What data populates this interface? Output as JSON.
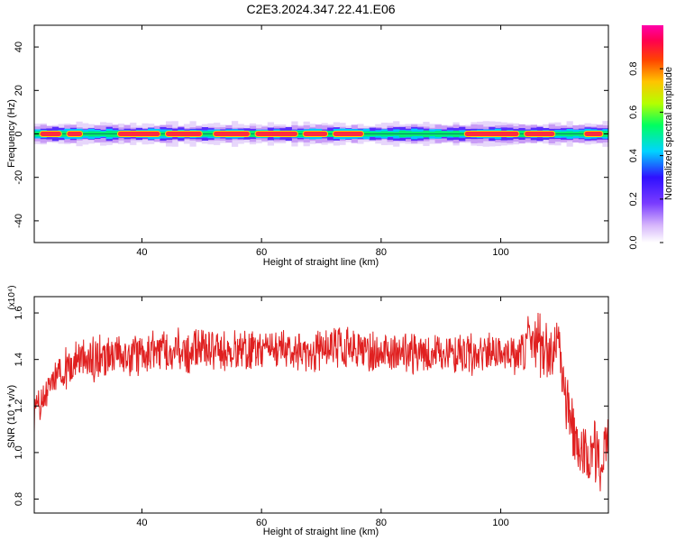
{
  "title": "C2E3.2024.347.22.41.E06",
  "chart_data": [
    {
      "type": "heatmap",
      "xlabel": "Height of straight line (km)",
      "ylabel": "Frequency (Hz)",
      "xlim": [
        22,
        118
      ],
      "ylim": [
        -50,
        50
      ],
      "xticks": [
        40,
        60,
        80,
        100
      ],
      "yticks": [
        -40,
        -20,
        0,
        20,
        40
      ],
      "grid": false,
      "band_center_hz": 0,
      "band_halfwidth_hz": 2,
      "colorbar": {
        "label": "Normalized spectral amplitude",
        "range": [
          0,
          1
        ],
        "ticks": [
          0.0,
          0.2,
          0.4,
          0.6,
          0.8
        ],
        "colors": [
          "#ffffff",
          "#b87ff7",
          "#3d10ff",
          "#00d7ff",
          "#00ff5a",
          "#e0ff00",
          "#ff7a00",
          "#ff003c",
          "#ff00a0"
        ]
      },
      "peak_segments": [
        {
          "x": [
            23,
            26.5
          ],
          "level": 0.8
        },
        {
          "x": [
            27.5,
            30
          ],
          "level": 0.75
        },
        {
          "x": [
            36,
            43
          ],
          "level": 0.95
        },
        {
          "x": [
            44,
            50
          ],
          "level": 0.95
        },
        {
          "x": [
            52,
            58
          ],
          "level": 0.9
        },
        {
          "x": [
            59,
            66
          ],
          "level": 0.92
        },
        {
          "x": [
            67,
            71
          ],
          "level": 0.9
        },
        {
          "x": [
            72,
            77
          ],
          "level": 0.95
        },
        {
          "x": [
            94,
            103
          ],
          "level": 0.95
        },
        {
          "x": [
            104,
            109
          ],
          "level": 0.9
        },
        {
          "x": [
            114,
            117
          ],
          "level": 0.9
        }
      ]
    },
    {
      "type": "line",
      "xlabel": "Height of straight line (km)",
      "ylabel": "SNR (10 * v/v)",
      "y_multiplier": "(x10⁴)",
      "xlim": [
        22,
        118
      ],
      "ylim": [
        0.74,
        1.67
      ],
      "xticks": [
        40,
        60,
        80,
        100
      ],
      "yticks": [
        0.8,
        1.0,
        1.2,
        1.4,
        1.6
      ],
      "grid": false,
      "color": "#e02020",
      "series": [
        {
          "x": [
            22,
            23,
            24,
            25,
            26,
            27,
            28,
            29,
            30,
            31,
            32,
            33,
            34,
            35,
            36,
            38,
            40,
            42,
            44,
            46,
            48,
            50,
            52,
            54,
            56,
            58,
            60,
            62,
            64,
            66,
            68,
            70,
            72,
            74,
            76,
            78,
            80,
            82,
            84,
            86,
            88,
            90,
            92,
            94,
            96,
            98,
            100,
            102,
            104,
            105,
            106,
            107,
            108,
            109,
            110,
            110.5,
            111,
            112,
            113,
            114,
            115,
            116,
            117,
            118
          ],
          "y": [
            1.15,
            1.2,
            1.25,
            1.3,
            1.33,
            1.36,
            1.38,
            1.4,
            1.4,
            1.4,
            1.4,
            1.42,
            1.41,
            1.42,
            1.43,
            1.42,
            1.42,
            1.43,
            1.44,
            1.44,
            1.42,
            1.45,
            1.44,
            1.44,
            1.43,
            1.44,
            1.43,
            1.44,
            1.45,
            1.42,
            1.43,
            1.44,
            1.45,
            1.44,
            1.44,
            1.43,
            1.43,
            1.44,
            1.43,
            1.42,
            1.42,
            1.43,
            1.42,
            1.43,
            1.42,
            1.42,
            1.42,
            1.41,
            1.45,
            1.5,
            1.48,
            1.45,
            1.44,
            1.45,
            1.42,
            1.3,
            1.2,
            1.1,
            1.0,
            0.98,
            1.0,
            1.02,
            0.97,
            1.05
          ]
        }
      ]
    }
  ]
}
